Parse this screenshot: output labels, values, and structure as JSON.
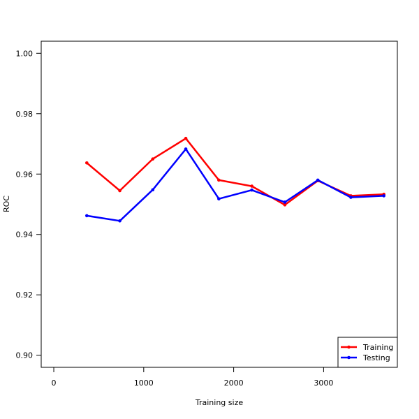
{
  "chart_data": {
    "type": "line",
    "xlabel": "Training size",
    "ylabel": "ROC",
    "xlim": [
      -140,
      3820
    ],
    "ylim": [
      0.896,
      1.004
    ],
    "x_ticks": [
      0,
      1000,
      2000,
      3000
    ],
    "x_tick_labels": [
      "0",
      "1000",
      "2000",
      "3000"
    ],
    "y_ticks": [
      0.9,
      0.92,
      0.94,
      0.96,
      0.98,
      1.0
    ],
    "y_tick_labels": [
      "0.90",
      "0.92",
      "0.94",
      "0.96",
      "0.98",
      "1.00"
    ],
    "grid": false,
    "legend_position": "bottom-right",
    "x": [
      367,
      734,
      1101,
      1468,
      1835,
      2202,
      2569,
      2936,
      3303,
      3670
    ],
    "series": [
      {
        "name": "Training",
        "color": "#ff0000",
        "values": [
          0.9637,
          0.9545,
          0.965,
          0.9718,
          0.958,
          0.956,
          0.9498,
          0.9578,
          0.9528,
          0.9533
        ]
      },
      {
        "name": "Testing",
        "color": "#0000ff",
        "values": [
          0.9462,
          0.9445,
          0.9548,
          0.9683,
          0.9518,
          0.9547,
          0.9507,
          0.958,
          0.9523,
          0.9528
        ]
      }
    ]
  }
}
